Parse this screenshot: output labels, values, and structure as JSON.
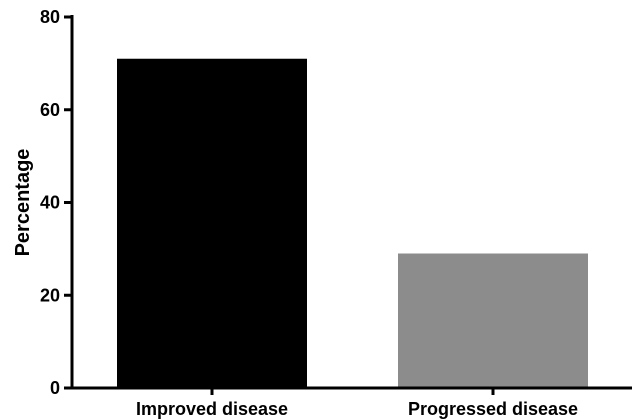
{
  "chart_data": {
    "type": "bar",
    "title": "",
    "xlabel": "",
    "ylabel": "Percentage",
    "ylim": [
      0,
      80
    ],
    "yticks": [
      0,
      20,
      40,
      60,
      80
    ],
    "categories": [
      "Improved disease",
      "Progressed disease"
    ],
    "values": [
      71,
      29
    ],
    "colors": [
      "#000000",
      "#8c8c8c"
    ],
    "grid": false,
    "legend": "none"
  }
}
